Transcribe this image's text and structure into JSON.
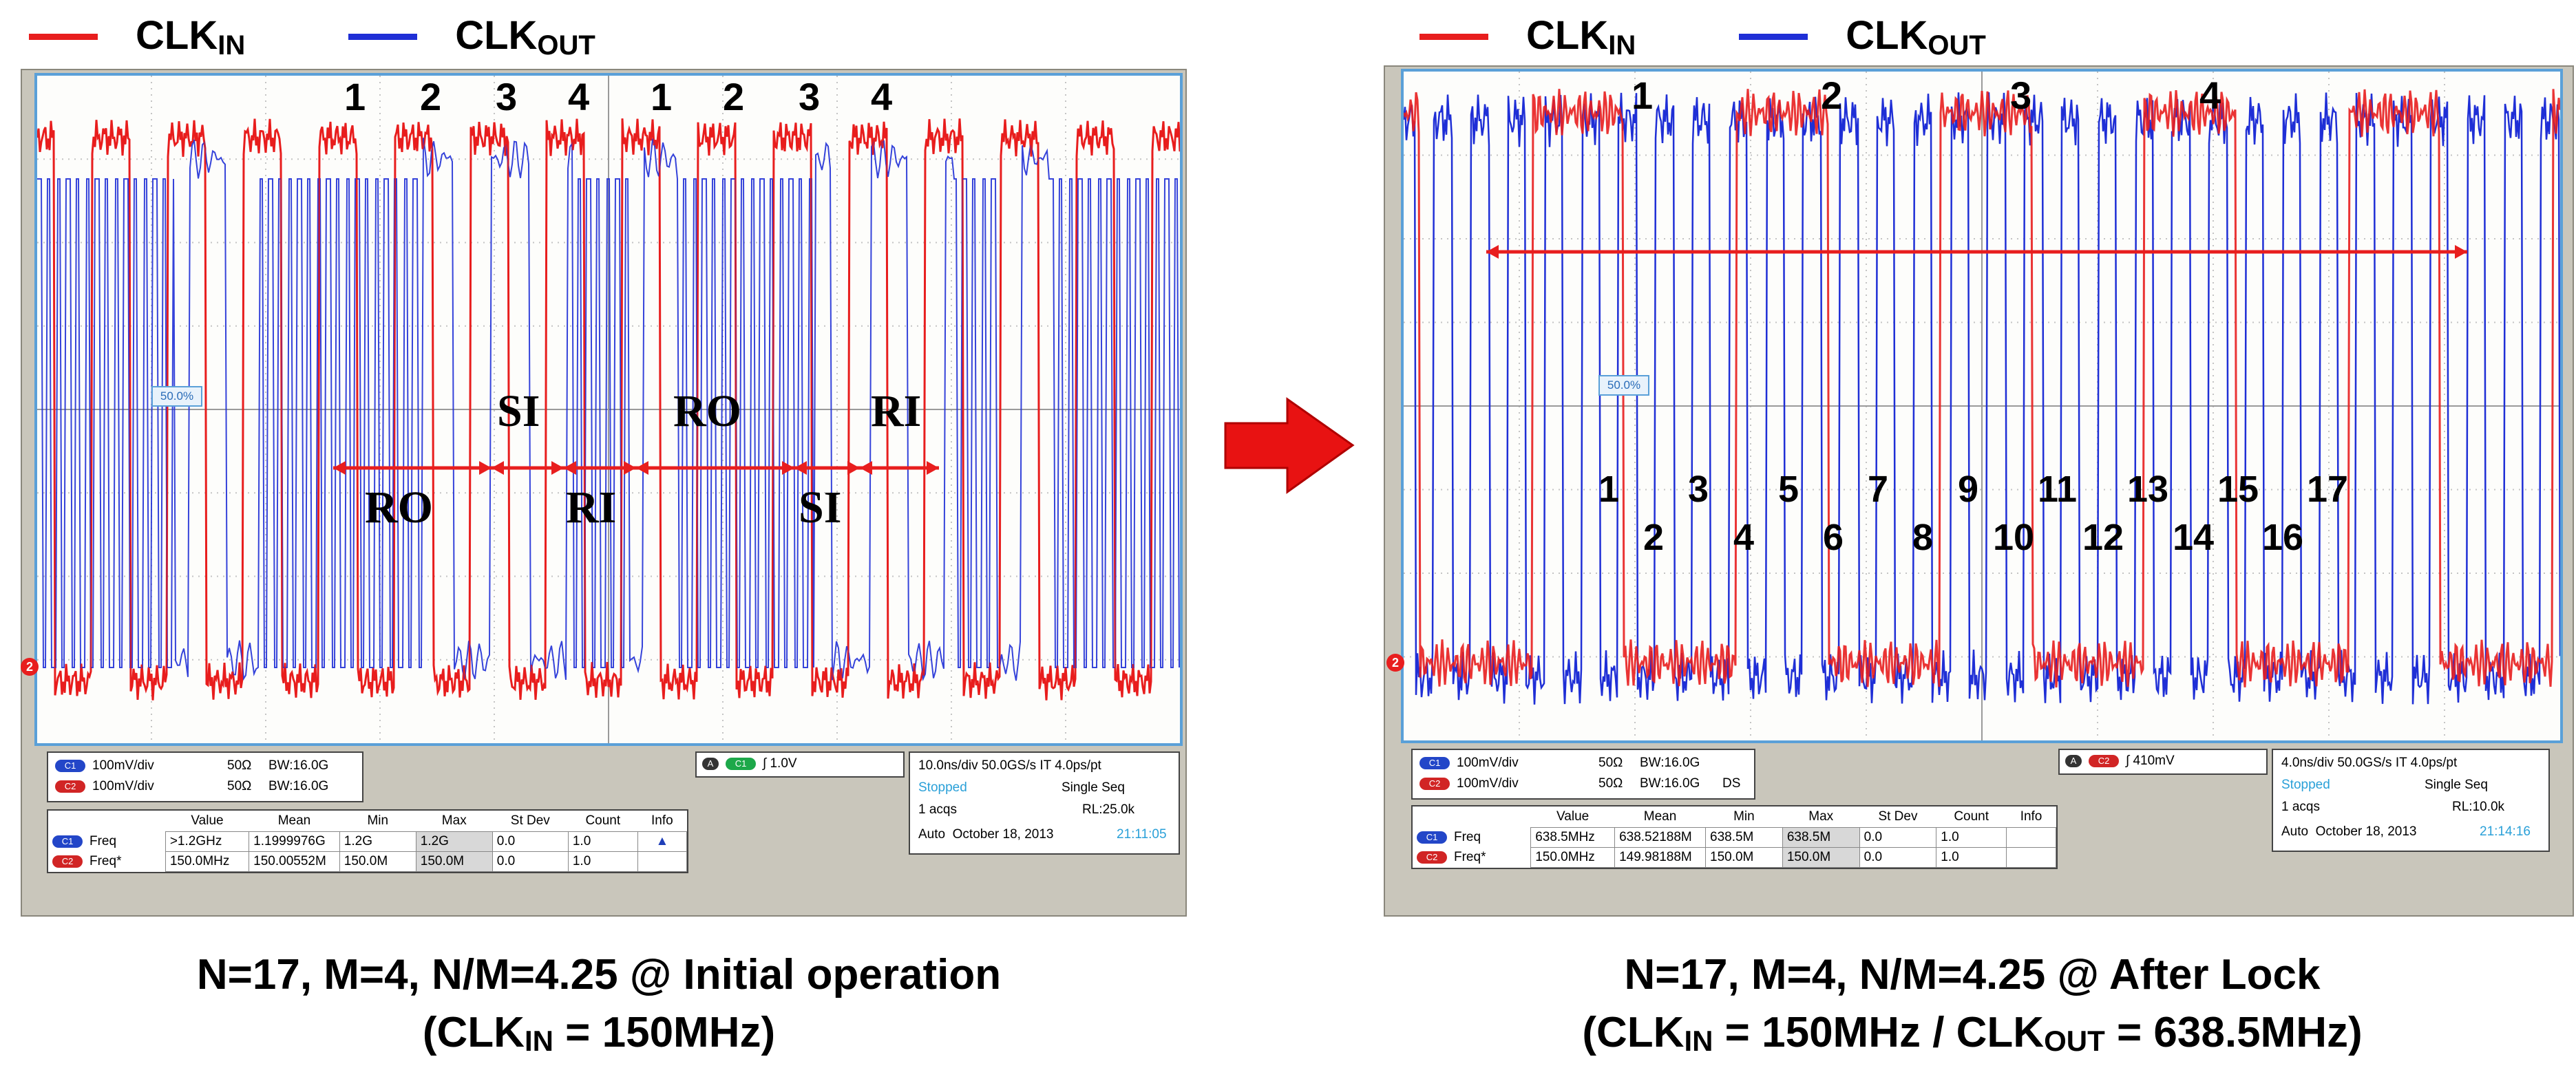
{
  "legend_left": {
    "clk_in": {
      "main": "CLK",
      "sub": "IN"
    },
    "clk_out": {
      "main": "CLK",
      "sub": "OUT"
    }
  },
  "legend_right": {
    "clk_in": {
      "main": "CLK",
      "sub": "IN"
    },
    "clk_out": {
      "main": "CLK",
      "sub": "OUT"
    }
  },
  "colors": {
    "clk_in": "#e81e1e",
    "clk_out": "#1f2fd6",
    "screen_border": "#5aa0d8",
    "annotation": "#e81e1e"
  },
  "chart_data": [
    {
      "type": "line",
      "title": "N=17, M=4, N/M=4.25 @ Initial operation",
      "subtitle": "(CLKIN = 150MHz)",
      "subtitle_parts": {
        "pre": "(CLK",
        "sub": "IN",
        "post": " = 150MHz)"
      },
      "series": [
        {
          "name": "CLKIN",
          "freq_mhz": 150.0
        },
        {
          "name": "CLKOUT",
          "freq_mhz": 1200.0
        }
      ],
      "top_numbers": [
        "1",
        "2",
        "3",
        "4",
        "1",
        "2",
        "3",
        "4"
      ],
      "region_labels": [
        "RO",
        "SI",
        "RI",
        "RO",
        "SI",
        "RI"
      ],
      "marker": "50.0%",
      "channel_marker": "2",
      "scope": {
        "ch1": "100mV/div",
        "ch1_imp": "50Ω",
        "ch1_bw": "BW:16.0G",
        "ch2": "100mV/div",
        "ch2_imp": "50Ω",
        "ch2_bw": "BW:16.0G",
        "trigger_level": "1.0V",
        "trigger_ch": "C1",
        "trigger_mode": "A",
        "timebase": "10.0ns/div",
        "sample_rate": "50.0GS/s",
        "it": "IT",
        "res": "4.0ps/pt",
        "state": "Stopped",
        "seq": "Single Seq",
        "acqs": "1 acqs",
        "rl": "RL:25.0k",
        "auto": "Auto",
        "date": "October 18, 2013",
        "time": "21:11:05"
      },
      "measurements": {
        "headers": [
          "",
          "Value",
          "Mean",
          "Min",
          "Max",
          "St Dev",
          "Count",
          "Info"
        ],
        "rows": [
          {
            "ch": "C1",
            "name": "Freq",
            "value": ">1.2GHz",
            "mean": "1.1999976G",
            "min": "1.2G",
            "max": "1.2G",
            "stdev": "0.0",
            "count": "1.0",
            "info": "▲"
          },
          {
            "ch": "C2",
            "name": "Freq*",
            "value": "150.0MHz",
            "mean": "150.00552M",
            "min": "150.0M",
            "max": "150.0M",
            "stdev": "0.0",
            "count": "1.0",
            "info": ""
          }
        ]
      }
    },
    {
      "type": "line",
      "title": "N=17, M=4, N/M=4.25 @ After Lock",
      "subtitle": "(CLKIN = 150MHz / CLKOUT = 638.5MHz)",
      "subtitle_parts": {
        "pre": "(CLK",
        "sub": "IN",
        "mid": " = 150MHz / CLK",
        "sub2": "OUT",
        "post": " = 638.5MHz)"
      },
      "series": [
        {
          "name": "CLKIN",
          "freq_mhz": 150.0
        },
        {
          "name": "CLKOUT",
          "freq_mhz": 638.5
        }
      ],
      "top_numbers": [
        "1",
        "2",
        "3",
        "4"
      ],
      "cycle_numbers": [
        "1",
        "2",
        "3",
        "4",
        "5",
        "6",
        "7",
        "8",
        "9",
        "10",
        "11",
        "12",
        "13",
        "14",
        "15",
        "16",
        "17"
      ],
      "marker": "50.0%",
      "channel_marker": "2",
      "scope": {
        "ch1": "100mV/div",
        "ch1_imp": "50Ω",
        "ch1_bw": "BW:16.0G",
        "ch2": "100mV/div",
        "ch2_imp": "50Ω",
        "ch2_bw": "BW:16.0G",
        "ch2_ds": "DS",
        "trigger_level": "410mV",
        "trigger_ch": "C2",
        "trigger_mode": "A",
        "timebase": "4.0ns/div",
        "sample_rate": "50.0GS/s",
        "it": "IT",
        "res": "4.0ps/pt",
        "state": "Stopped",
        "seq": "Single Seq",
        "acqs": "1 acqs",
        "rl": "RL:10.0k",
        "auto": "Auto",
        "date": "October 18, 2013",
        "time": "21:14:16"
      },
      "measurements": {
        "headers": [
          "",
          "Value",
          "Mean",
          "Min",
          "Max",
          "St Dev",
          "Count",
          "Info"
        ],
        "rows": [
          {
            "ch": "C1",
            "name": "Freq",
            "value": "638.5MHz",
            "mean": "638.52188M",
            "min": "638.5M",
            "max": "638.5M",
            "stdev": "0.0",
            "count": "1.0",
            "info": ""
          },
          {
            "ch": "C2",
            "name": "Freq*",
            "value": "150.0MHz",
            "mean": "149.98188M",
            "min": "150.0M",
            "max": "150.0M",
            "stdev": "0.0",
            "count": "1.0",
            "info": ""
          }
        ]
      }
    }
  ]
}
